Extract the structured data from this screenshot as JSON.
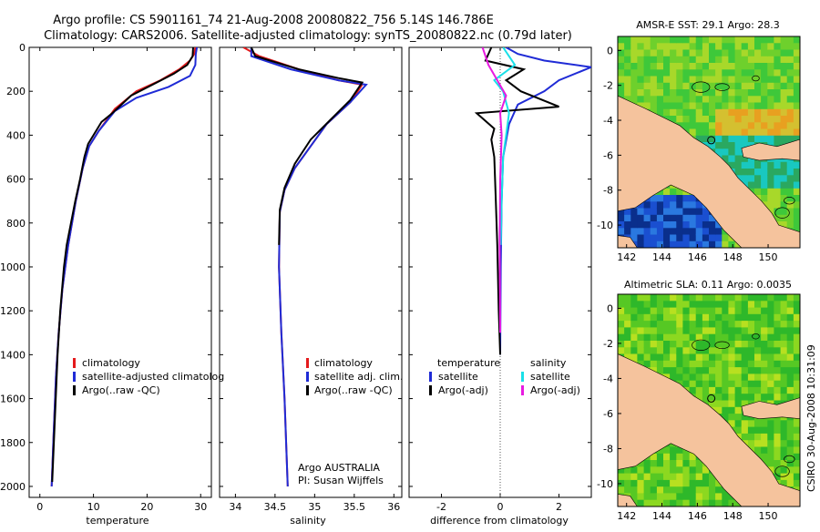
{
  "title": {
    "line1": "Argo profile: CS 5901161_74 21-Aug-2008 20080822_756 5.14S 146.786E",
    "line2": "Climatology: CARS2006. Satellite-adjusted climatology: synTS_20080822.nc (0.79d later)"
  },
  "depth_ticks": [
    "0",
    "200",
    "400",
    "600",
    "800",
    "1000",
    "1200",
    "1400",
    "1600",
    "1800",
    "2000"
  ],
  "colors": {
    "clim": "#e41a1c",
    "sat": "#1f2bd6",
    "argo": "#000000",
    "cyan": "#19e0e8",
    "magenta": "#e81ae0",
    "land": "#f5c39d"
  },
  "chart_data": [
    {
      "type": "line",
      "name": "temperature-panel",
      "xlabel": "temperature",
      "xlim": [
        -2,
        32
      ],
      "ylim": [
        2050,
        0
      ],
      "xticks": [
        "0",
        "10",
        "20",
        "30"
      ],
      "legend": [
        "climatology",
        "satellite-adjusted climatolog",
        "Argo(..raw -QC)"
      ],
      "series": [
        {
          "name": "climatology",
          "color": "clim",
          "points": [
            [
              29.0,
              0
            ],
            [
              28.8,
              30
            ],
            [
              28.0,
              60
            ],
            [
              26.0,
              100
            ],
            [
              22.5,
              150
            ],
            [
              18.0,
              200
            ],
            [
              14.0,
              280
            ],
            [
              11.0,
              380
            ],
            [
              9.2,
              450
            ],
            [
              8.0,
              550
            ],
            [
              6.7,
              700
            ],
            [
              5.3,
              900
            ],
            [
              4.2,
              1100
            ],
            [
              3.5,
              1300
            ],
            [
              3.0,
              1500
            ],
            [
              2.5,
              1800
            ],
            [
              2.2,
              2000
            ]
          ]
        },
        {
          "name": "satellite-adjusted",
          "color": "sat",
          "points": [
            [
              29.3,
              0
            ],
            [
              29.1,
              30
            ],
            [
              29.0,
              80
            ],
            [
              28.0,
              130
            ],
            [
              24.0,
              180
            ],
            [
              18.0,
              230
            ],
            [
              14.0,
              290
            ],
            [
              11.0,
              380
            ],
            [
              9.2,
              450
            ],
            [
              8.0,
              550
            ],
            [
              6.7,
              700
            ],
            [
              5.3,
              900
            ],
            [
              4.2,
              1100
            ],
            [
              3.5,
              1300
            ],
            [
              3.0,
              1500
            ],
            [
              2.5,
              1800
            ],
            [
              2.2,
              2000
            ]
          ]
        },
        {
          "name": "argo",
          "color": "argo",
          "points": [
            [
              28.6,
              0
            ],
            [
              28.5,
              40
            ],
            [
              27.5,
              80
            ],
            [
              25.0,
              120
            ],
            [
              21.0,
              170
            ],
            [
              17.0,
              220
            ],
            [
              13.5,
              300
            ],
            [
              11.5,
              340
            ],
            [
              10.0,
              400
            ],
            [
              9.0,
              440
            ],
            [
              8.3,
              500
            ],
            [
              7.5,
              600
            ],
            [
              6.6,
              700
            ],
            [
              5.8,
              800
            ],
            [
              5.0,
              900
            ],
            [
              4.5,
              1000
            ],
            [
              3.8,
              1200
            ],
            [
              3.3,
              1400
            ],
            [
              2.3,
              1980
            ]
          ]
        }
      ]
    },
    {
      "type": "line",
      "name": "salinity-panel",
      "xlabel": "salinity",
      "xlim": [
        33.8,
        36.1
      ],
      "ylim": [
        2050,
        0
      ],
      "xticks": [
        "34",
        "34.5",
        "35",
        "35.5",
        "36"
      ],
      "legend": [
        "climatology",
        "satellite adj. clim.",
        "Argo(..raw -QC)"
      ],
      "annotation": [
        "Argo AUSTRALIA",
        "PI: Susan Wijffels"
      ],
      "series": [
        {
          "name": "climatology",
          "color": "clim",
          "points": [
            [
              34.1,
              0
            ],
            [
              34.3,
              40
            ],
            [
              34.8,
              100
            ],
            [
              35.3,
              150
            ],
            [
              35.6,
              170
            ],
            [
              35.45,
              250
            ],
            [
              35.15,
              350
            ],
            [
              34.95,
              450
            ],
            [
              34.75,
              550
            ],
            [
              34.62,
              650
            ],
            [
              34.56,
              750
            ],
            [
              34.55,
              1000
            ],
            [
              34.58,
              1300
            ],
            [
              34.62,
              1600
            ],
            [
              34.66,
              2000
            ]
          ]
        },
        {
          "name": "satellite-adjusted",
          "color": "sat",
          "points": [
            [
              34.2,
              0
            ],
            [
              34.2,
              40
            ],
            [
              34.7,
              100
            ],
            [
              35.3,
              150
            ],
            [
              35.65,
              170
            ],
            [
              35.45,
              250
            ],
            [
              35.15,
              350
            ],
            [
              34.95,
              450
            ],
            [
              34.75,
              550
            ],
            [
              34.62,
              650
            ],
            [
              34.56,
              750
            ],
            [
              34.55,
              1000
            ],
            [
              34.58,
              1300
            ],
            [
              34.62,
              1600
            ],
            [
              34.66,
              2000
            ]
          ]
        },
        {
          "name": "argo",
          "color": "argo",
          "points": [
            [
              34.2,
              0
            ],
            [
              34.25,
              40
            ],
            [
              34.8,
              100
            ],
            [
              35.3,
              140
            ],
            [
              35.6,
              160
            ],
            [
              35.45,
              240
            ],
            [
              35.2,
              330
            ],
            [
              34.95,
              420
            ],
            [
              34.75,
              530
            ],
            [
              34.62,
              640
            ],
            [
              34.56,
              740
            ],
            [
              34.55,
              900
            ]
          ]
        }
      ]
    },
    {
      "type": "line",
      "name": "difference-panel",
      "xlabel": "difference from climatology",
      "xlim": [
        -3.1,
        3.1
      ],
      "ylim": [
        2050,
        0
      ],
      "xticks": [
        "-2",
        "0",
        "2"
      ],
      "legend_temperature_head": "temperature",
      "legend_salinity_head": "salinity",
      "legend_temperature": [
        "satellite",
        "Argo(-adj)"
      ],
      "legend_salinity": [
        "satellite",
        "Argo(-adj)"
      ],
      "series": [
        {
          "name": "temp-satellite",
          "color": "sat",
          "points": [
            [
              0.2,
              0
            ],
            [
              0.6,
              30
            ],
            [
              1.5,
              60
            ],
            [
              3.1,
              90
            ],
            [
              2.0,
              150
            ],
            [
              1.5,
              200
            ],
            [
              0.6,
              260
            ],
            [
              0.3,
              350
            ],
            [
              0.1,
              500
            ],
            [
              0.05,
              700
            ],
            [
              0.02,
              1000
            ],
            [
              0,
              1400
            ]
          ]
        },
        {
          "name": "temp-argo",
          "color": "argo",
          "points": [
            [
              -0.3,
              0
            ],
            [
              -0.5,
              60
            ],
            [
              0.8,
              100
            ],
            [
              0.2,
              150
            ],
            [
              0.7,
              200
            ],
            [
              2.0,
              270
            ],
            [
              -0.8,
              300
            ],
            [
              -0.2,
              370
            ],
            [
              -0.3,
              420
            ],
            [
              -0.2,
              500
            ],
            [
              -0.15,
              700
            ],
            [
              -0.1,
              900
            ],
            [
              -0.05,
              1200
            ],
            [
              0,
              1400
            ]
          ]
        },
        {
          "name": "sal-satellite",
          "color": "cyan",
          "points": [
            [
              0.1,
              0
            ],
            [
              0.5,
              80
            ],
            [
              -0.2,
              150
            ],
            [
              0.1,
              200
            ],
            [
              0.3,
              300
            ],
            [
              0.2,
              400
            ],
            [
              0.1,
              500
            ],
            [
              0.05,
              700
            ],
            [
              0.02,
              900
            ]
          ]
        },
        {
          "name": "sal-argo",
          "color": "magenta",
          "points": [
            [
              -0.6,
              0
            ],
            [
              -0.4,
              80
            ],
            [
              -0.1,
              150
            ],
            [
              0.2,
              220
            ],
            [
              0.0,
              300
            ],
            [
              0.05,
              400
            ],
            [
              0.0,
              600
            ],
            [
              -0.02,
              900
            ],
            [
              0,
              1300
            ]
          ]
        }
      ]
    },
    {
      "type": "heatmap",
      "name": "sst-map",
      "title": "AMSR-E SST: 29.1  Argo: 28.3",
      "xticks": [
        "142",
        "144",
        "146",
        "148",
        "150"
      ],
      "yticks": [
        "0",
        "-2",
        "-4",
        "-6",
        "-8",
        "-10"
      ],
      "lon_range": [
        141.5,
        151.8
      ],
      "lat_range": [
        -11.3,
        0.8
      ],
      "argo_lon": 146.786,
      "argo_lat": -5.14
    },
    {
      "type": "heatmap",
      "name": "sla-map",
      "title": "Altimetric SLA: 0.11  Argo: 0.0035",
      "xticks": [
        "142",
        "144",
        "146",
        "148",
        "150"
      ],
      "yticks": [
        "0",
        "-2",
        "-4",
        "-6",
        "-8",
        "-10"
      ],
      "lon_range": [
        141.5,
        151.8
      ],
      "lat_range": [
        -11.3,
        0.8
      ],
      "argo_lon": 146.786,
      "argo_lat": -5.14
    }
  ],
  "credit": "CSIRO 30-Aug-2008 10:31:09"
}
